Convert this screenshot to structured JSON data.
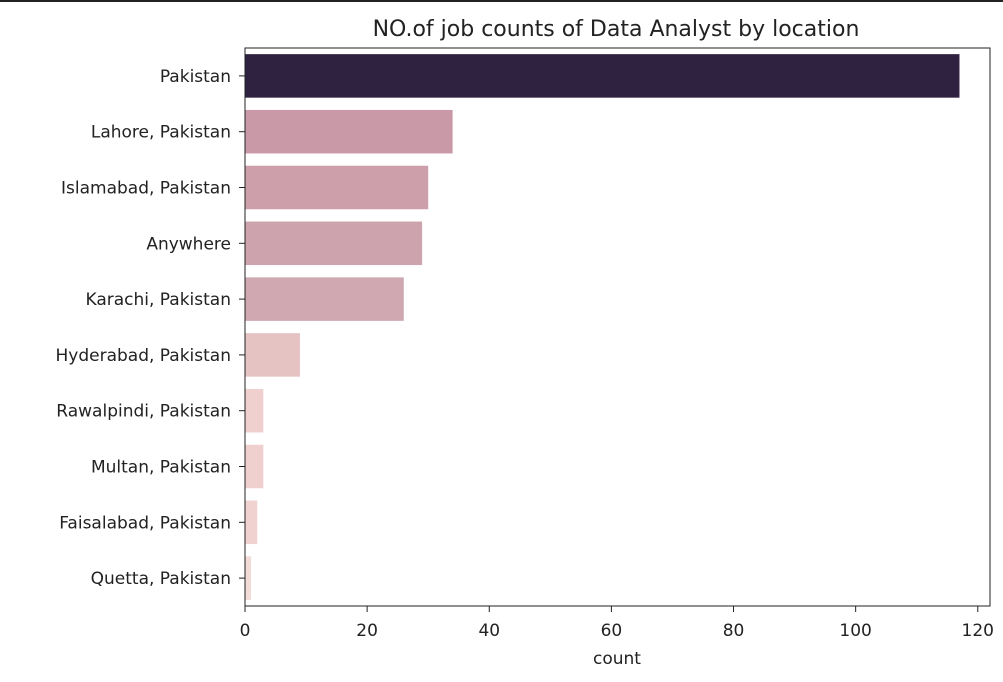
{
  "chart_data": {
    "type": "bar",
    "orientation": "horizontal",
    "title": "NO.of job counts of Data Analyst by location",
    "xlabel": "count",
    "ylabel": "",
    "xlim": [
      0,
      122
    ],
    "xticks": [
      0,
      20,
      40,
      60,
      80,
      100,
      120
    ],
    "grid": false,
    "legend": "none",
    "categories": [
      "Pakistan",
      "Lahore, Pakistan",
      "Islamabad, Pakistan",
      "Anywhere",
      "Karachi, Pakistan",
      "Hyderabad, Pakistan",
      "Rawalpindi, Pakistan",
      "Multan, Pakistan",
      "Faisalabad, Pakistan",
      "Quetta, Pakistan"
    ],
    "values": [
      117,
      34,
      30,
      29,
      26,
      9,
      3,
      3,
      2,
      1
    ],
    "colors": [
      "#2f2240",
      "#c999a8",
      "#cc9fab",
      "#cda3ae",
      "#d0a8b2",
      "#e6c3c3",
      "#efd0cf",
      "#efd0cf",
      "#f0d3d1",
      "#f3dbd8"
    ]
  }
}
